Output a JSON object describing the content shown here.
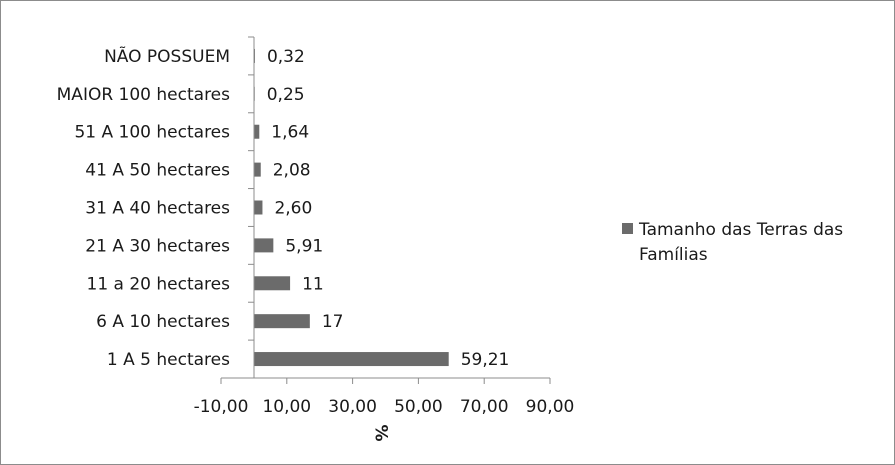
{
  "chart_data": {
    "type": "bar",
    "orientation": "horizontal",
    "categories": [
      "NÃO POSSUEM",
      "MAIOR 100 hectares",
      "51 A 100 hectares",
      "41 A 50 hectares",
      "31 A 40 hectares",
      "21 A 30 hectares",
      "11 a 20 hectares",
      "6 A 10 hectares",
      "1 A 5 hectares"
    ],
    "series": [
      {
        "name": "Tamanho das Terras das Famílias",
        "values": [
          0.32,
          0.25,
          1.64,
          2.08,
          2.6,
          5.91,
          11,
          17,
          59.21
        ],
        "value_labels": [
          "0,32",
          "0,25",
          "1,64",
          "2,08",
          "2,60",
          "5,91",
          "11",
          "17",
          "59,21"
        ]
      }
    ],
    "xlabel": "%",
    "ylabel": "",
    "xlim": [
      -10,
      90
    ],
    "xticks": [
      -10,
      10,
      30,
      50,
      70,
      90
    ],
    "xtick_labels": [
      "-10,00",
      "10,00",
      "30,00",
      "50,00",
      "70,00",
      "90,00"
    ],
    "grid": false,
    "legend_position": "right",
    "bar_color": "#6b6b6b"
  }
}
